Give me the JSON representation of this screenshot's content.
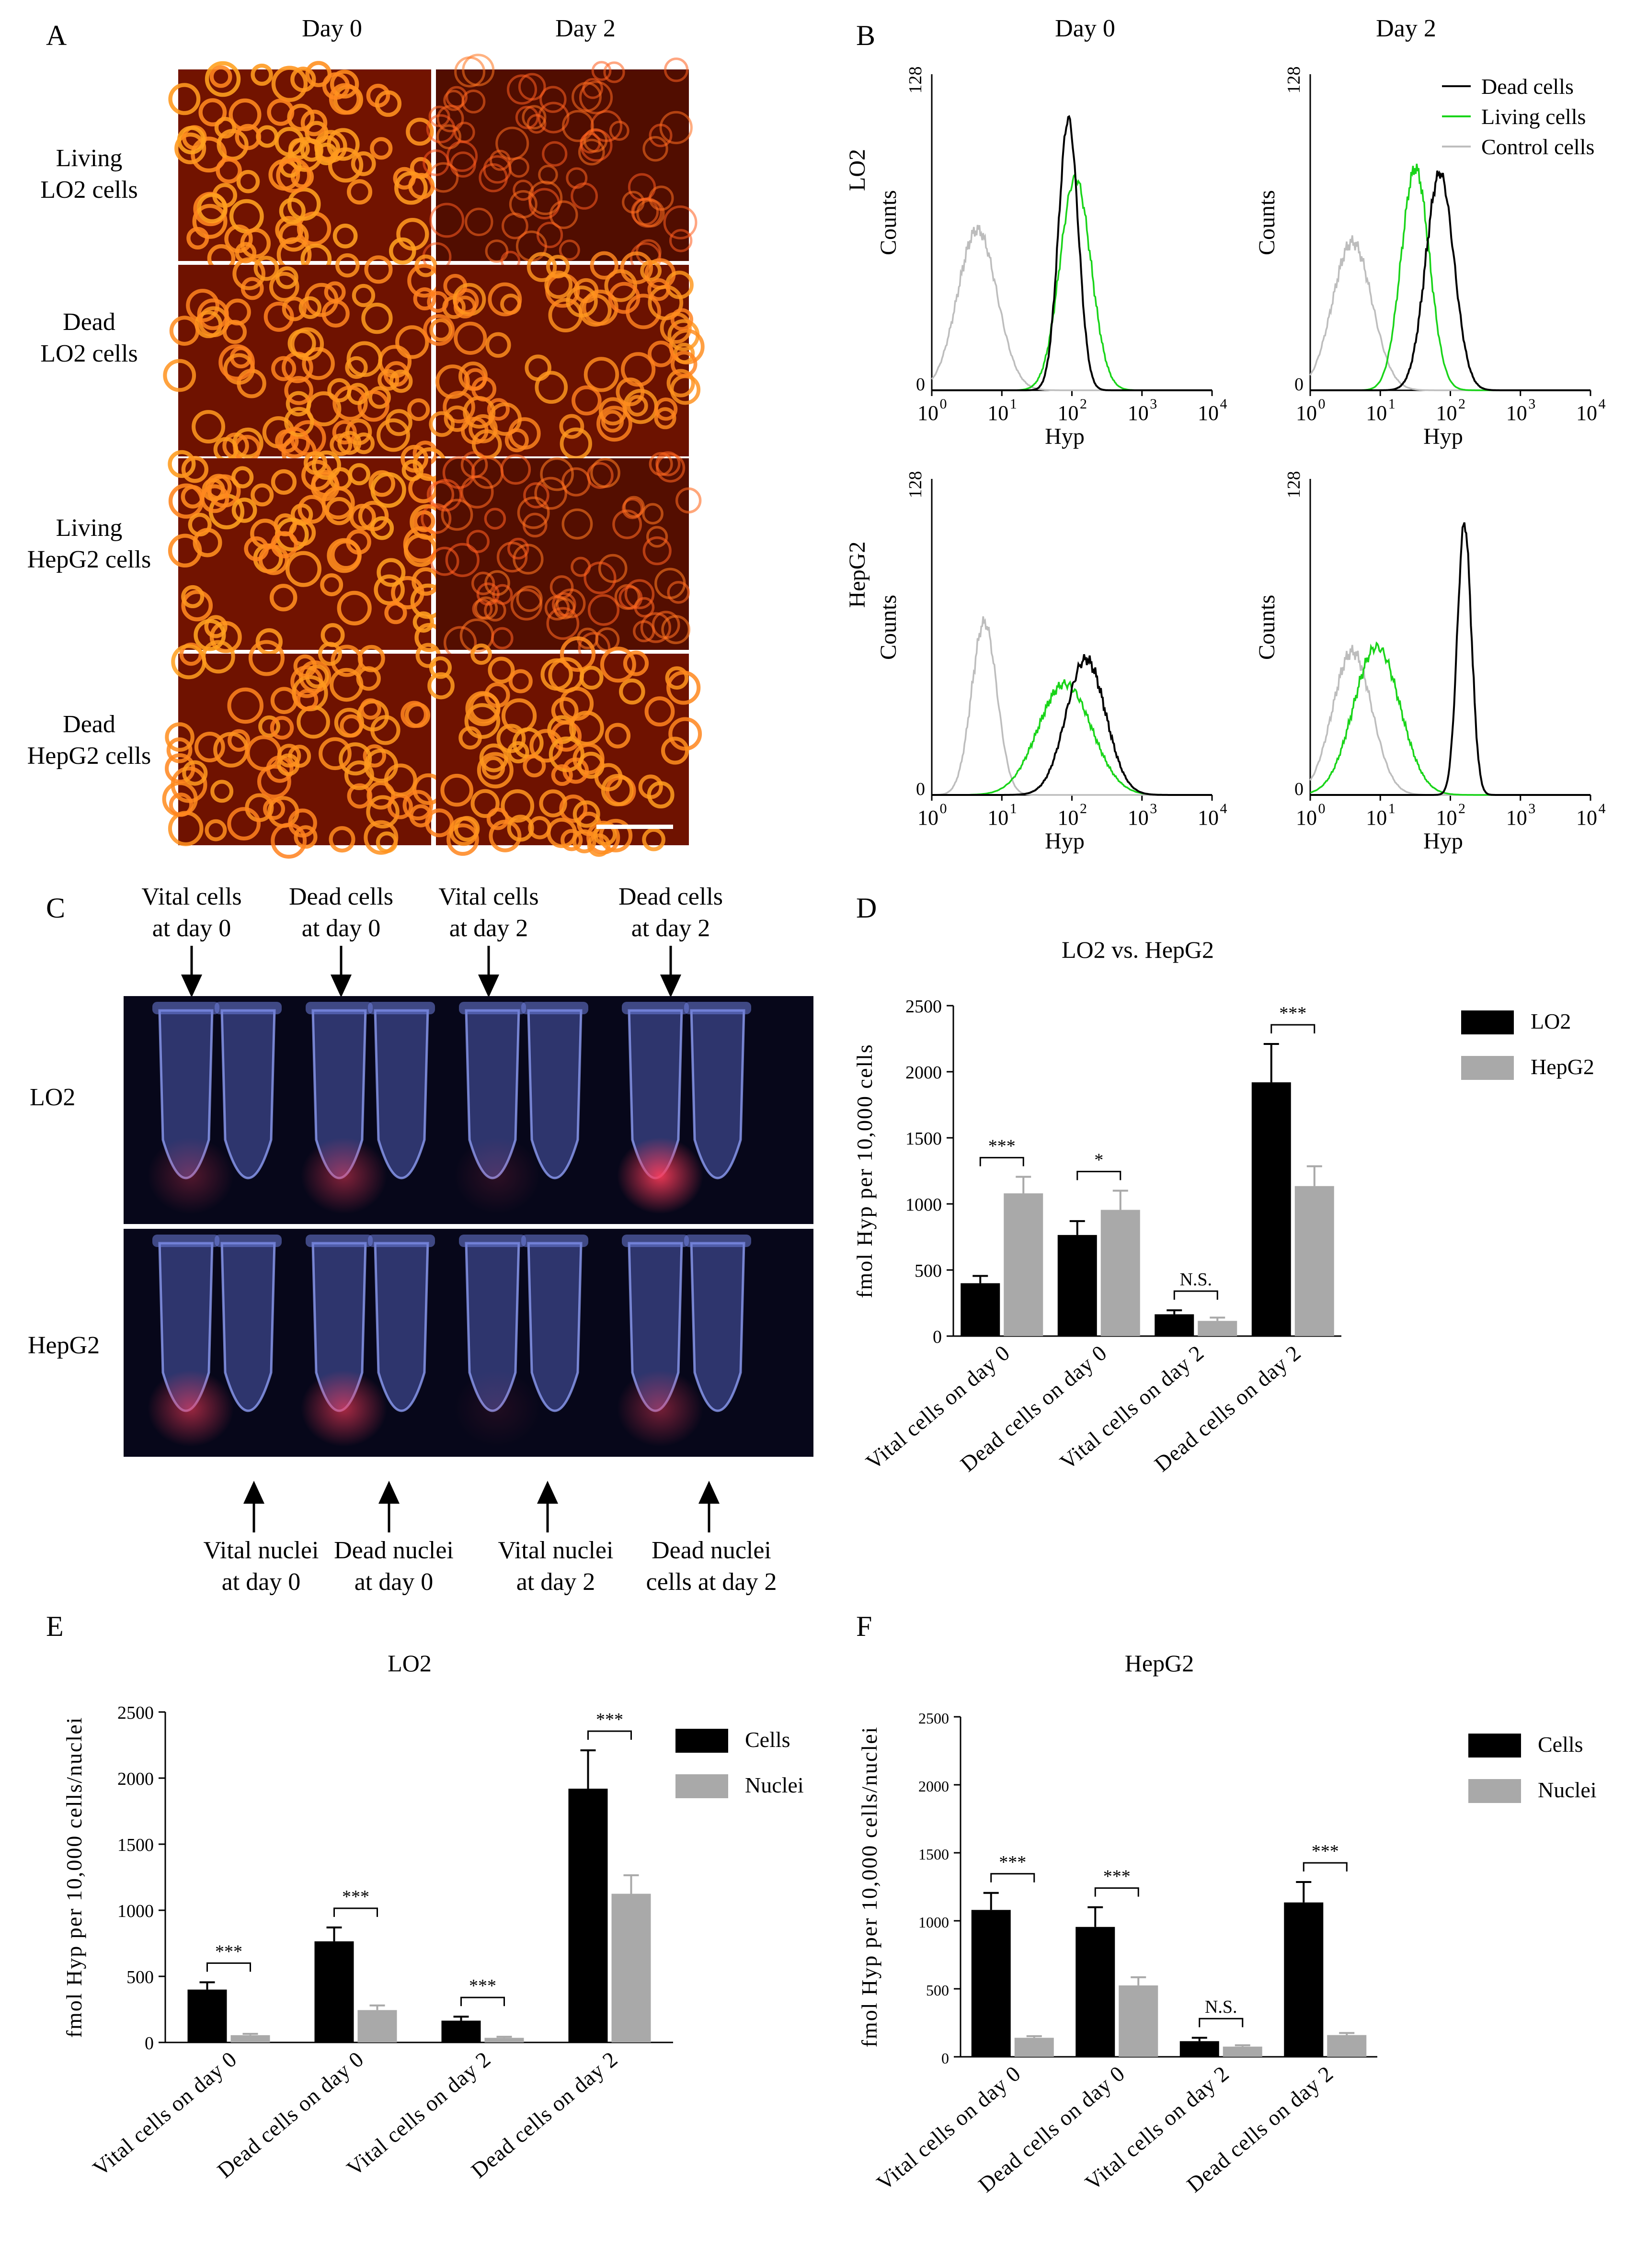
{
  "panels": {
    "A": {
      "label": "A",
      "col_headers": [
        "Day 0",
        "Day 2"
      ],
      "row_labels": [
        [
          "Living",
          "LO2 cells"
        ],
        [
          "Dead",
          "LO2 cells"
        ],
        [
          "Living",
          "HepG2 cells"
        ],
        [
          "Dead",
          "HepG2 cells"
        ]
      ],
      "intensity": [
        [
          0.9,
          0.35
        ],
        [
          0.85,
          0.8
        ],
        [
          0.9,
          0.4
        ],
        [
          0.85,
          0.85
        ]
      ]
    },
    "B": {
      "label": "B",
      "col_headers": [
        "Day 0",
        "Day 2"
      ],
      "row_labels": [
        "LO2",
        "HepG2"
      ],
      "legend": [
        {
          "name": "Dead cells",
          "color": "#000000"
        },
        {
          "name": "Living cells",
          "color": "#19d419"
        },
        {
          "name": "Control cells",
          "color": "#bdbdbd"
        }
      ],
      "ylabel": "Counts",
      "xlabel": "Hyp",
      "ytick_top": "128",
      "ytick_bottom": "0",
      "xticks": [
        "10",
        "10",
        "10",
        "10",
        "10"
      ],
      "xtick_exp": [
        "0",
        "1",
        "2",
        "3",
        "4"
      ],
      "xlim_log10": [
        0,
        4
      ],
      "ylim": [
        0,
        128
      ],
      "histograms": [
        {
          "row": 0,
          "col": 0,
          "peaks": [
            {
              "series": "Control cells",
              "center": 0.65,
              "width": 0.28,
              "height": 65
            },
            {
              "series": "Dead cells",
              "center": 1.95,
              "width": 0.14,
              "height": 110
            },
            {
              "series": "Living cells",
              "center": 2.05,
              "width": 0.22,
              "height": 86
            }
          ]
        },
        {
          "row": 0,
          "col": 1,
          "peaks": [
            {
              "series": "Control cells",
              "center": 0.6,
              "width": 0.28,
              "height": 60
            },
            {
              "series": "Living cells",
              "center": 1.5,
              "width": 0.2,
              "height": 90
            },
            {
              "series": "Dead cells",
              "center": 1.85,
              "width": 0.2,
              "height": 88
            }
          ]
        },
        {
          "row": 1,
          "col": 0,
          "peaks": [
            {
              "series": "Control cells",
              "center": 0.75,
              "width": 0.18,
              "height": 70
            },
            {
              "series": "Living cells",
              "center": 1.9,
              "width": 0.38,
              "height": 45
            },
            {
              "series": "Dead cells",
              "center": 2.2,
              "width": 0.28,
              "height": 55
            }
          ]
        },
        {
          "row": 1,
          "col": 1,
          "peaks": [
            {
              "series": "Control cells",
              "center": 0.6,
              "width": 0.28,
              "height": 58
            },
            {
              "series": "Living cells",
              "center": 0.95,
              "width": 0.33,
              "height": 60
            },
            {
              "series": "Dead cells",
              "center": 2.2,
              "width": 0.1,
              "height": 110
            }
          ]
        }
      ]
    },
    "C": {
      "label": "C",
      "top_arrows": [
        [
          "Vital cells",
          "at day 0"
        ],
        [
          "Dead cells",
          "at day 0"
        ],
        [
          "Vital cells",
          "at day 2"
        ],
        [
          "Dead cells",
          "at day 2"
        ]
      ],
      "bottom_arrows": [
        [
          "Vital nuclei",
          "at day 0"
        ],
        [
          "Dead nuclei",
          "at day 0"
        ],
        [
          "Vital nuclei",
          "at day 2"
        ],
        [
          "Dead nuclei",
          "cells at day 2"
        ]
      ],
      "row_labels": [
        "LO2",
        "HepG2"
      ],
      "red_intensity": [
        [
          0.3,
          0.5,
          0.15,
          0.9
        ],
        [
          0.6,
          0.65,
          0.1,
          0.45
        ]
      ]
    },
    "D": {
      "label": "D"
    },
    "E": {
      "label": "E"
    },
    "F": {
      "label": "F"
    }
  },
  "chart_data": [
    {
      "id": "D",
      "type": "bar",
      "title": "LO2 vs. HepG2",
      "ylabel": "fmol Hyp per 10,000 cells",
      "xlabel": "",
      "categories": [
        "Vital cells on day 0",
        "Dead cells on day 0",
        "Vital cells on day 2",
        "Dead cells on day 2"
      ],
      "series": [
        {
          "name": "LO2",
          "color": "#000000",
          "values": [
            400,
            765,
            165,
            1920
          ],
          "errors": [
            55,
            105,
            30,
            290
          ]
        },
        {
          "name": "HepG2",
          "color": "#a9a9a9",
          "values": [
            1080,
            955,
            115,
            1135
          ],
          "errors": [
            125,
            145,
            25,
            150
          ]
        }
      ],
      "ylim": [
        0,
        2500
      ],
      "yticks": [
        0,
        500,
        1000,
        1500,
        2000,
        2500
      ],
      "significance": [
        "***",
        "*",
        "N.S.",
        "***"
      ],
      "legend_position": "top-right"
    },
    {
      "id": "E",
      "type": "bar",
      "title": "LO2",
      "ylabel": "fmol Hyp per 10,000 cells/nuclei",
      "xlabel": "",
      "categories": [
        "Vital cells on day 0",
        "Dead cells on day 0",
        "Vital cells on day 2",
        "Dead cells on day 2"
      ],
      "series": [
        {
          "name": "Cells",
          "color": "#000000",
          "values": [
            400,
            765,
            165,
            1920
          ],
          "errors": [
            55,
            105,
            30,
            290
          ]
        },
        {
          "name": "Nuclei",
          "color": "#a9a9a9",
          "values": [
            55,
            245,
            35,
            1125
          ],
          "errors": [
            10,
            35,
            8,
            140
          ]
        }
      ],
      "ylim": [
        0,
        2500
      ],
      "yticks": [
        0,
        500,
        1000,
        1500,
        2000,
        2500
      ],
      "significance": [
        "***",
        "***",
        "***",
        "***"
      ],
      "legend_position": "top-right"
    },
    {
      "id": "F",
      "type": "bar",
      "title": "HepG2",
      "ylabel": "fmol Hyp per 10,000 cells/nuclei",
      "xlabel": "",
      "categories": [
        "Vital cells on day 0",
        "Dead cells on day 0",
        "Vital cells on day 2",
        "Dead cells on day 2"
      ],
      "series": [
        {
          "name": "Cells",
          "color": "#000000",
          "values": [
            1080,
            955,
            115,
            1135
          ],
          "errors": [
            125,
            145,
            25,
            150
          ]
        },
        {
          "name": "Nuclei",
          "color": "#a9a9a9",
          "values": [
            140,
            525,
            75,
            160
          ],
          "errors": [
            12,
            60,
            10,
            15
          ]
        }
      ],
      "ylim": [
        0,
        2500
      ],
      "yticks": [
        0,
        500,
        1000,
        1500,
        2000,
        2500
      ],
      "significance": [
        "***",
        "***",
        "N.S.",
        "***"
      ],
      "legend_position": "top-right"
    }
  ]
}
